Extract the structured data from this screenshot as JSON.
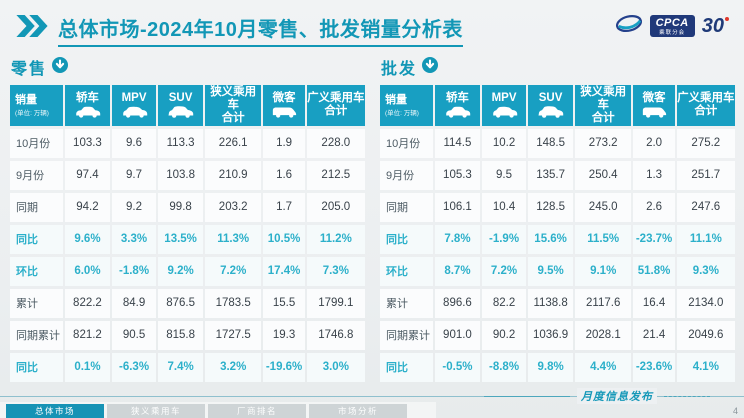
{
  "header": {
    "title": "总体市场-2024年10月零售、批发销量分析表"
  },
  "logos": {
    "cpca": "CPCA",
    "cpca_sub": "乘联分会",
    "anniversary": "30"
  },
  "colors": {
    "accent_teal": "#189fc2",
    "title_teal": "#1297b6",
    "percent_teal": "#2cb0ca",
    "navy": "#20397a"
  },
  "chart_data": [
    {
      "type": "table",
      "title": "零售",
      "first_column": {
        "label": "销量",
        "sub": "(单位: 万辆)"
      },
      "columns": [
        {
          "label": "轿车",
          "icon": "sedan-car-icon"
        },
        {
          "label": "MPV",
          "icon": "mpv-car-icon"
        },
        {
          "label": "SUV",
          "icon": "suv-car-icon"
        },
        {
          "label": "狭义乘用车",
          "label2": "合计"
        },
        {
          "label": "微客",
          "icon": "minibus-icon"
        },
        {
          "label": "广义乘用车",
          "label2": "合计"
        }
      ],
      "rows": [
        {
          "label": "10月份",
          "kind": "value",
          "cells": [
            "103.3",
            "9.6",
            "113.3",
            "226.1",
            "1.9",
            "228.0"
          ]
        },
        {
          "label": "9月份",
          "kind": "value",
          "cells": [
            "97.4",
            "9.7",
            "103.8",
            "210.9",
            "1.6",
            "212.5"
          ]
        },
        {
          "label": "同期",
          "kind": "value",
          "cells": [
            "94.2",
            "9.2",
            "99.8",
            "203.2",
            "1.7",
            "205.0"
          ]
        },
        {
          "label": "同比",
          "kind": "percent",
          "cells": [
            "9.6%",
            "3.3%",
            "13.5%",
            "11.3%",
            "10.5%",
            "11.2%"
          ]
        },
        {
          "label": "环比",
          "kind": "percent",
          "cells": [
            "6.0%",
            "-1.8%",
            "9.2%",
            "7.2%",
            "17.4%",
            "7.3%"
          ]
        },
        {
          "label": "累计",
          "kind": "value",
          "cells": [
            "822.2",
            "84.9",
            "876.5",
            "1783.5",
            "15.5",
            "1799.1"
          ]
        },
        {
          "label": "同期累计",
          "kind": "value",
          "cells": [
            "821.2",
            "90.5",
            "815.8",
            "1727.5",
            "19.3",
            "1746.8"
          ]
        },
        {
          "label": "同比",
          "kind": "percent",
          "cells": [
            "0.1%",
            "-6.3%",
            "7.4%",
            "3.2%",
            "-19.6%",
            "3.0%"
          ]
        }
      ]
    },
    {
      "type": "table",
      "title": "批发",
      "first_column": {
        "label": "销量",
        "sub": "(单位: 万辆)"
      },
      "columns": [
        {
          "label": "轿车",
          "icon": "sedan-car-icon"
        },
        {
          "label": "MPV",
          "icon": "mpv-car-icon"
        },
        {
          "label": "SUV",
          "icon": "suv-car-icon"
        },
        {
          "label": "狭义乘用车",
          "label2": "合计"
        },
        {
          "label": "微客",
          "icon": "minibus-icon"
        },
        {
          "label": "广义乘用车",
          "label2": "合计"
        }
      ],
      "rows": [
        {
          "label": "10月份",
          "kind": "value",
          "cells": [
            "114.5",
            "10.2",
            "148.5",
            "273.2",
            "2.0",
            "275.2"
          ]
        },
        {
          "label": "9月份",
          "kind": "value",
          "cells": [
            "105.3",
            "9.5",
            "135.7",
            "250.4",
            "1.3",
            "251.7"
          ]
        },
        {
          "label": "同期",
          "kind": "value",
          "cells": [
            "106.1",
            "10.4",
            "128.5",
            "245.0",
            "2.6",
            "247.6"
          ]
        },
        {
          "label": "同比",
          "kind": "percent",
          "cells": [
            "7.8%",
            "-1.9%",
            "15.6%",
            "11.5%",
            "-23.7%",
            "11.1%"
          ]
        },
        {
          "label": "环比",
          "kind": "percent",
          "cells": [
            "8.7%",
            "7.2%",
            "9.5%",
            "9.1%",
            "51.8%",
            "9.3%"
          ]
        },
        {
          "label": "累计",
          "kind": "value",
          "cells": [
            "896.6",
            "82.2",
            "1138.8",
            "2117.6",
            "16.4",
            "2134.0"
          ]
        },
        {
          "label": "同期累计",
          "kind": "value",
          "cells": [
            "901.0",
            "90.2",
            "1036.9",
            "2028.1",
            "21.4",
            "2049.6"
          ]
        },
        {
          "label": "同比",
          "kind": "percent",
          "cells": [
            "-0.5%",
            "-8.8%",
            "9.8%",
            "4.4%",
            "-23.6%",
            "4.1%"
          ]
        }
      ]
    }
  ],
  "footer": {
    "note": "月度信息发布",
    "page_number": "4",
    "tabs": [
      {
        "label": "总体市场",
        "active": true
      },
      {
        "label": "狭义乘用车",
        "active": false
      },
      {
        "label": "厂商排名",
        "active": false
      },
      {
        "label": "市场分析",
        "active": false
      }
    ]
  }
}
